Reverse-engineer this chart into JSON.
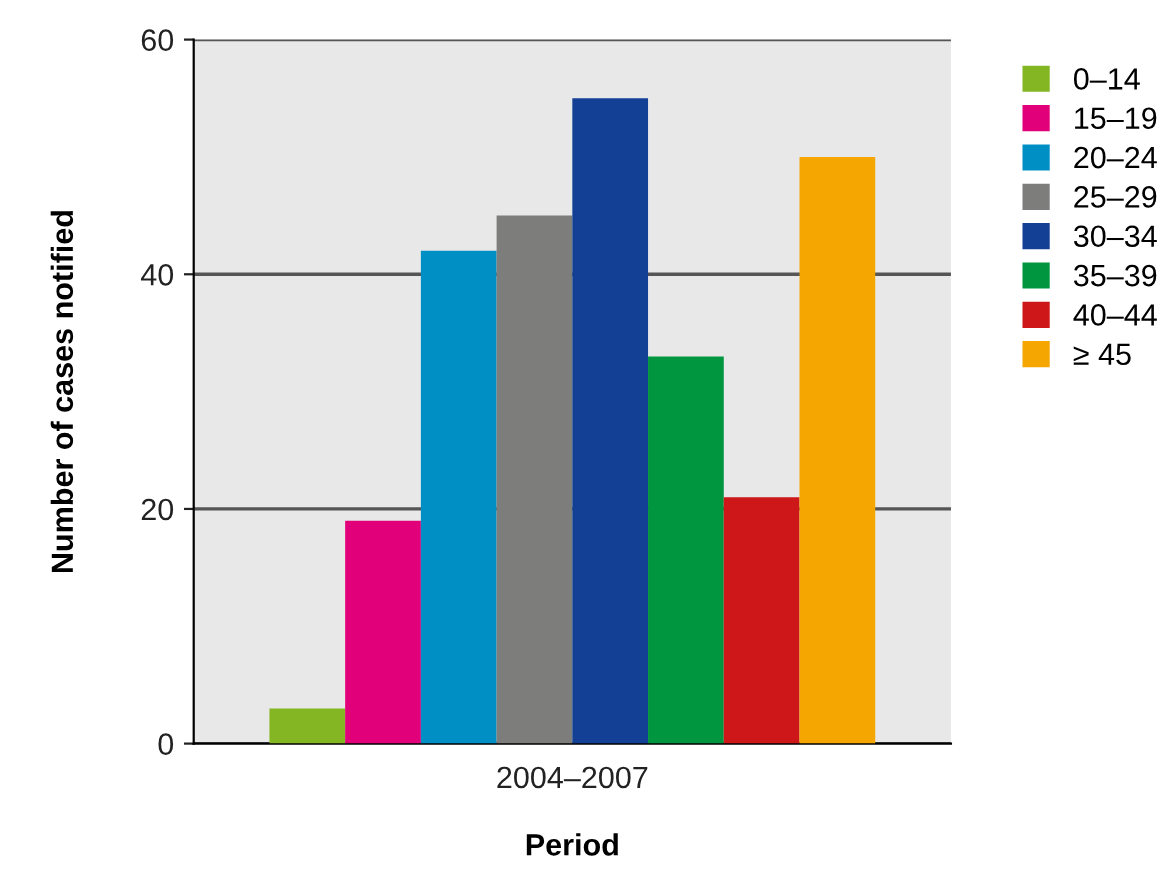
{
  "chart_data": {
    "type": "bar",
    "xlabel": "Period",
    "ylabel": "Number of cases notified",
    "categories": [
      "2004–2007"
    ],
    "series": [
      {
        "name": "0–14",
        "color": "#84b624",
        "values": [
          3
        ]
      },
      {
        "name": "15–19",
        "color": "#e2007a",
        "values": [
          19
        ]
      },
      {
        "name": "20–24",
        "color": "#008fc5",
        "values": [
          42
        ]
      },
      {
        "name": "25–29",
        "color": "#7d7d7b",
        "values": [
          45
        ]
      },
      {
        "name": "30–34",
        "color": "#134094",
        "values": [
          55
        ]
      },
      {
        "name": "35–39",
        "color": "#00953f",
        "values": [
          33
        ]
      },
      {
        "name": "40–44",
        "color": "#cd1719",
        "values": [
          21
        ]
      },
      {
        "name": "≥ 45",
        "color": "#f6a600",
        "values": [
          50
        ]
      }
    ],
    "ylim": [
      0,
      60
    ],
    "yticks": [
      0,
      20,
      40,
      60
    ],
    "grid": "y",
    "legend": "top right"
  }
}
